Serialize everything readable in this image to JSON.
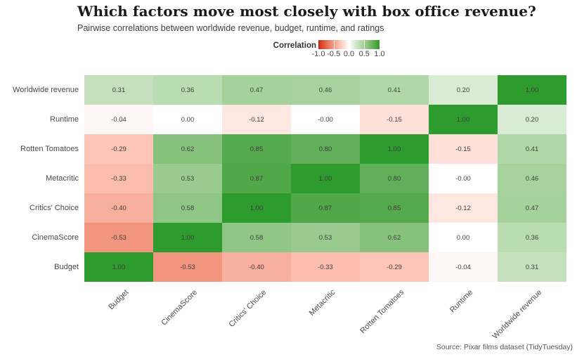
{
  "title": "Which factors move most closely with box office revenue?",
  "subtitle": "Pairwise correlations between worldwide revenue, budget, runtime, and ratings",
  "legend": {
    "label": "Correlation",
    "ticks": [
      "-1.0",
      "-0.5",
      "0.0",
      "0.5",
      "1.0"
    ]
  },
  "source": "Source: Pixar films dataset (TidyTuesday)",
  "colors": {
    "negative": "#cc2818",
    "neutral": "#ffffff",
    "positive": "#2d9b2d"
  },
  "chart_data": {
    "type": "heatmap",
    "title": "Which factors move most closely with box office revenue?",
    "subtitle": "Pairwise correlations between worldwide revenue, budget, runtime, and ratings",
    "legend_title": "Correlation",
    "value_range": [
      -1.0,
      1.0
    ],
    "rows": [
      "Worldwide revenue",
      "Runtime",
      "Rotten Tomatoes",
      "Metacritic",
      "Critics' Choice",
      "CinemaScore",
      "Budget"
    ],
    "columns": [
      "Budget",
      "CinemaScore",
      "Critics' Choice",
      "Metacritic",
      "Rotten Tomatoes",
      "Runtime",
      "Worldwide revenue"
    ],
    "values": [
      [
        "0.31",
        "0.36",
        "0.47",
        "0.46",
        "0.41",
        "0.20",
        "1.00"
      ],
      [
        "-0.04",
        "0.00",
        "-0.12",
        "-0.00",
        "-0.15",
        "1.00",
        "0.20"
      ],
      [
        "-0.29",
        "0.62",
        "0.85",
        "0.80",
        "1.00",
        "-0.15",
        "0.41"
      ],
      [
        "-0.33",
        "0.53",
        "0.87",
        "1.00",
        "0.80",
        "-0.00",
        "0.46"
      ],
      [
        "-0.40",
        "0.58",
        "1.00",
        "0.87",
        "0.85",
        "-0.12",
        "0.47"
      ],
      [
        "-0.53",
        "1.00",
        "0.58",
        "0.53",
        "0.62",
        "0.00",
        "0.36"
      ],
      [
        "1.00",
        "-0.53",
        "-0.40",
        "-0.33",
        "-0.29",
        "-0.04",
        "0.31"
      ]
    ]
  }
}
